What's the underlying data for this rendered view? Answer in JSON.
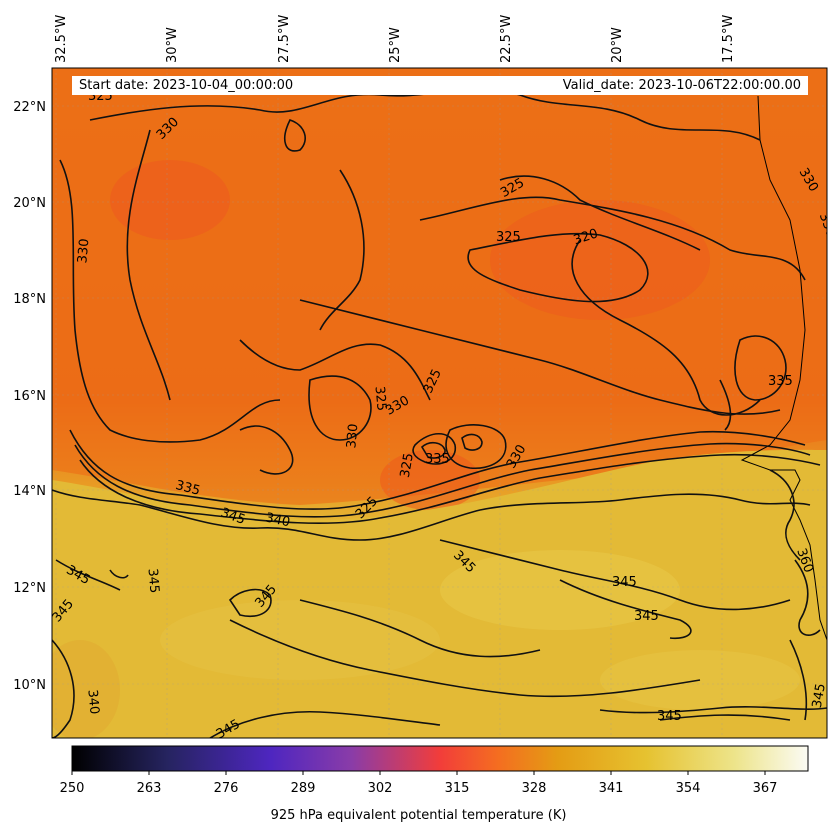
{
  "header": {
    "start_date": "Start date: 2023-10-04_00:00:00",
    "valid_date": "Valid_date: 2023-10-06T22:00:00.00"
  },
  "colorbar": {
    "label": "925 hPa equivalent potential temperature (K)",
    "ticks": [
      "250",
      "263",
      "276",
      "289",
      "302",
      "315",
      "328",
      "341",
      "354",
      "367"
    ],
    "colormap": "CMRmap-like (black → purple → red → orange → yellow → white)"
  },
  "axes": {
    "lon_labels": [
      "32.5°W",
      "30°W",
      "27.5°W",
      "25°W",
      "22.5°W",
      "20°W",
      "17.5°W"
    ],
    "lat_labels": [
      "22°N",
      "20°N",
      "18°N",
      "16°N",
      "14°N",
      "12°N",
      "10°N"
    ]
  },
  "contours": {
    "labels": [
      "325",
      "330",
      "330",
      "325",
      "325",
      "320",
      "330",
      "330",
      "325",
      "330",
      "330",
      "325",
      "335",
      "330",
      "325",
      "335",
      "345",
      "340",
      "325",
      "345",
      "345",
      "345",
      "345",
      "345",
      "345",
      "360",
      "345",
      "340",
      "345",
      "345",
      "345",
      "335"
    ]
  },
  "colors": {
    "north_fill": "#ec6e18",
    "south_fill": "#e4bb38",
    "contour": "#111111"
  }
}
